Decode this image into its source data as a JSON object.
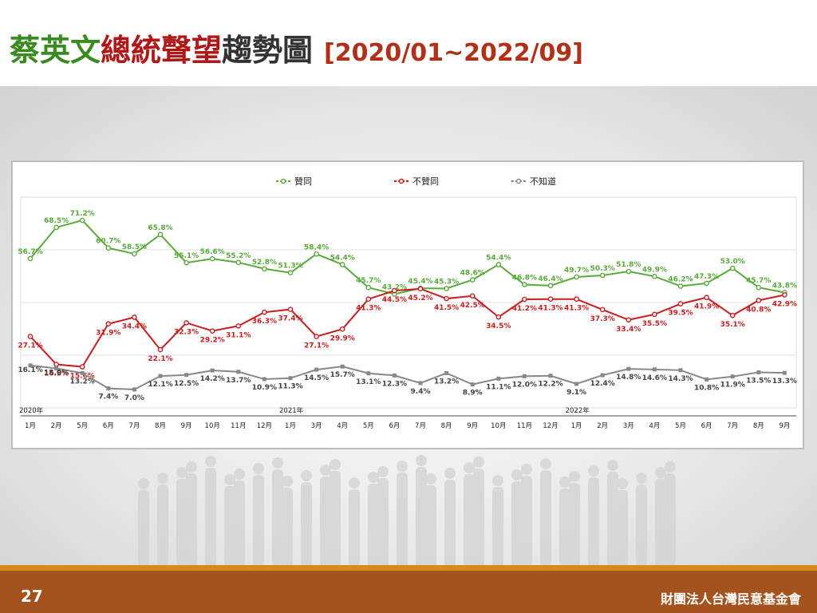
{
  "title": {
    "part1": "蔡英文",
    "part2": "總統聲望",
    "part3": "趨勢圖",
    "range": "[2020/01~2022/09]"
  },
  "footer": {
    "page_number": "27",
    "organization": "財團法人台灣民意基金會"
  },
  "chart_data": {
    "type": "line",
    "categories": [
      "1月",
      "2月",
      "5月",
      "6月",
      "7月",
      "8月",
      "9月",
      "10月",
      "11月",
      "12月",
      "1月",
      "3月",
      "4月",
      "5月",
      "6月",
      "7月",
      "8月",
      "9月",
      "10月",
      "11月",
      "12月",
      "1月",
      "2月",
      "3月",
      "4月",
      "5月",
      "6月",
      "7月",
      "8月",
      "9月"
    ],
    "year_labels": [
      {
        "index": 0,
        "label": "2020年"
      },
      {
        "index": 10,
        "label": "2021年"
      },
      {
        "index": 21,
        "label": "2022年"
      }
    ],
    "series": [
      {
        "name": "贊同",
        "color": "#5aaa3c",
        "values": [
          56.7,
          68.5,
          71.2,
          60.7,
          58.5,
          65.8,
          55.1,
          56.6,
          55.2,
          52.8,
          51.3,
          58.4,
          54.4,
          45.7,
          43.2,
          45.4,
          45.3,
          48.6,
          54.4,
          46.8,
          46.4,
          49.7,
          50.3,
          51.8,
          49.9,
          46.2,
          47.3,
          53.0,
          45.7,
          43.8
        ],
        "labels": [
          "56.7%",
          "68.5%",
          "71.2%",
          "60.7%",
          "58.5%",
          "65.8%",
          "55.1%",
          "56.6%",
          "55.2%",
          "52.8%",
          "51.3%",
          "58.4%",
          "54.4%",
          "45.7%",
          "43.2%",
          "45.4%",
          "45.3%",
          "48.6%",
          "54.4%",
          "46.8%",
          "46.4%",
          "49.7%",
          "50.3%",
          "51.8%",
          "49.9%",
          "46.2%",
          "47.3%",
          "53.0%",
          "45.7%",
          "43.8%"
        ]
      },
      {
        "name": "不贊同",
        "color": "#c81e1e",
        "values": [
          27.1,
          16.5,
          15.6,
          31.9,
          34.4,
          22.1,
          32.3,
          29.2,
          31.1,
          36.3,
          37.4,
          27.1,
          29.9,
          41.3,
          44.5,
          45.2,
          41.5,
          42.5,
          34.5,
          41.2,
          41.3,
          41.3,
          37.3,
          33.4,
          35.5,
          39.5,
          41.9,
          35.1,
          40.8,
          42.9
        ],
        "labels": [
          "27.1%",
          "16.5%",
          "15.6%",
          "31.9%",
          "34.4%",
          "22.1%",
          "32.3%",
          "29.2%",
          "31.1%",
          "36.3%",
          "37.4%",
          "27.1%",
          "29.9%",
          "41.3%",
          "44.5%",
          "45.2%",
          "41.5%",
          "42.5%",
          "34.5%",
          "41.2%",
          "41.3%",
          "41.3%",
          "37.3%",
          "33.4%",
          "35.5%",
          "39.5%",
          "41.9%",
          "35.1%",
          "40.8%",
          "42.9%"
        ]
      },
      {
        "name": "不知道",
        "color": "#888888",
        "values": [
          16.1,
          15.0,
          13.2,
          7.4,
          7.0,
          12.1,
          12.5,
          14.2,
          13.7,
          10.9,
          11.3,
          14.5,
          15.7,
          13.1,
          12.3,
          9.4,
          13.2,
          8.9,
          11.1,
          12.0,
          12.2,
          9.1,
          12.4,
          14.8,
          14.6,
          14.3,
          10.8,
          11.9,
          13.5,
          13.3
        ],
        "labels": [
          "16.1%",
          "15.0%",
          "13.2%",
          "7.4%",
          "7.0%",
          "12.1%",
          "12.5%",
          "14.2%",
          "13.7%",
          "10.9%",
          "11.3%",
          "14.5%",
          "15.7%",
          "13.1%",
          "12.3%",
          "9.4%",
          "13.2%",
          "8.9%",
          "11.1%",
          "12.0%",
          "12.2%",
          "9.1%",
          "12.4%",
          "14.8%",
          "14.6%",
          "14.3%",
          "10.8%",
          "11.9%",
          "13.5%",
          "13.3%"
        ]
      }
    ],
    "ylim": [
      0,
      80
    ],
    "grid": "horizontal",
    "legend": "top-center"
  }
}
